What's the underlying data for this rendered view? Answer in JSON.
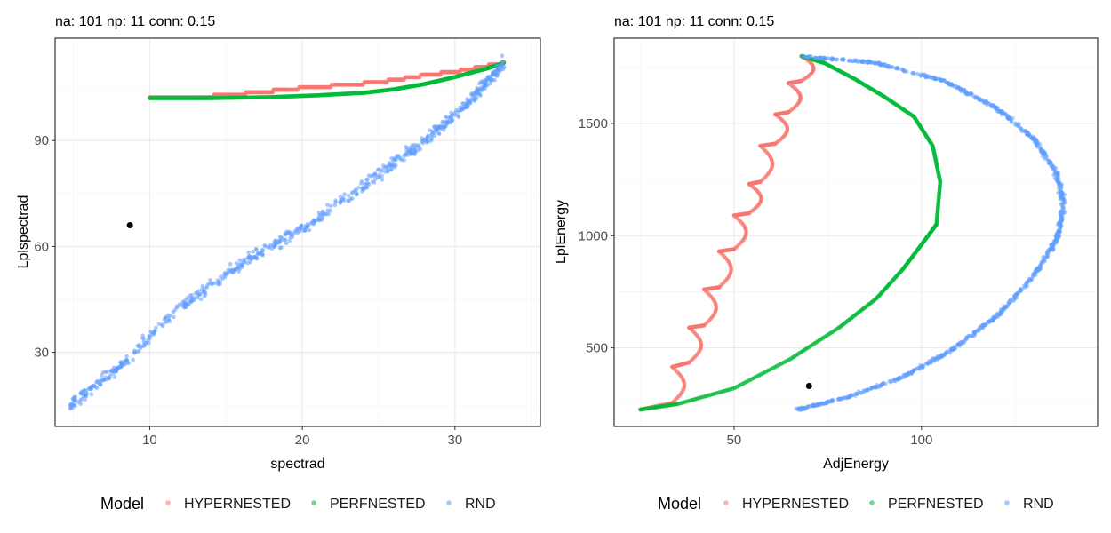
{
  "chart_data": [
    {
      "type": "scatter",
      "title": "na: 101 np: 11 conn: 0.15",
      "xlabel": "spectrad",
      "ylabel": "Lplspectrad",
      "xlim": [
        3.8,
        35.6
      ],
      "ylim": [
        9,
        119
      ],
      "xticks": [
        10,
        20,
        30
      ],
      "yticks": [
        30,
        60,
        90
      ],
      "grid": true,
      "legend": {
        "title": "Model",
        "position": "bottom"
      },
      "series": [
        {
          "name": "HYPERNESTED",
          "color": "#F8766D",
          "pattern": "step_curve",
          "points": [
            [
              10,
              102
            ],
            [
              13,
              102
            ],
            [
              15,
              103
            ],
            [
              17,
              103.5
            ],
            [
              19,
              104.5
            ],
            [
              22,
              105.5
            ],
            [
              25,
              106.5
            ],
            [
              28,
              108.5
            ],
            [
              30,
              109.5
            ],
            [
              32,
              111
            ],
            [
              33.2,
              112
            ]
          ]
        },
        {
          "name": "PERFNESTED",
          "color": "#00BA38",
          "pattern": "curve",
          "points": [
            [
              10,
              102
            ],
            [
              14,
              102
            ],
            [
              18,
              102.3
            ],
            [
              21,
              102.8
            ],
            [
              24,
              103.5
            ],
            [
              26,
              104.5
            ],
            [
              28,
              106
            ],
            [
              30,
              108
            ],
            [
              32,
              110.3
            ],
            [
              33.2,
              112
            ]
          ]
        },
        {
          "name": "RND",
          "color": "#619CFF",
          "pattern": "noisy_band",
          "points": [
            [
              4.8,
              15
            ],
            [
              8,
              26
            ],
            [
              12,
              43
            ],
            [
              16,
              55
            ],
            [
              20,
              65
            ],
            [
              24,
              77
            ],
            [
              28,
              90
            ],
            [
              31,
              101
            ],
            [
              33.2,
              112
            ]
          ]
        },
        {
          "name": "",
          "color": "#000000",
          "pattern": "single",
          "points": [
            [
              8.7,
              66
            ]
          ]
        }
      ]
    },
    {
      "type": "scatter",
      "title": "na: 101 np: 11 conn: 0.15",
      "xlabel": "AdjEnergy",
      "ylabel": "LplEnergy",
      "xlim": [
        18,
        147
      ],
      "ylim": [
        150,
        1880
      ],
      "xticks": [
        50,
        100
      ],
      "yticks": [
        500,
        1000,
        1500
      ],
      "grid": true,
      "legend": {
        "title": "Model",
        "position": "bottom"
      },
      "series": [
        {
          "name": "HYPERNESTED",
          "color": "#F8766D",
          "pattern": "scalloped",
          "points": [
            [
              25,
              225
            ],
            [
              33.5,
              255
            ],
            [
              33.5,
              415
            ],
            [
              38,
              435
            ],
            [
              38,
              590
            ],
            [
              42,
              600
            ],
            [
              42,
              760
            ],
            [
              46,
              770
            ],
            [
              46,
              930
            ],
            [
              50,
              940
            ],
            [
              50,
              1090
            ],
            [
              54,
              1100
            ],
            [
              54,
              1230
            ],
            [
              57,
              1240
            ],
            [
              57,
              1400
            ],
            [
              61,
              1410
            ],
            [
              61,
              1540
            ],
            [
              64.5,
              1550
            ],
            [
              64.5,
              1680
            ],
            [
              68,
              1690
            ],
            [
              68,
              1800
            ]
          ]
        },
        {
          "name": "PERFNESTED",
          "color": "#00BA38",
          "pattern": "curve",
          "points": [
            [
              25,
              225
            ],
            [
              35,
              250
            ],
            [
              50,
              320
            ],
            [
              65,
              450
            ],
            [
              78,
              590
            ],
            [
              88,
              720
            ],
            [
              95,
              850
            ],
            [
              100,
              960
            ],
            [
              104,
              1050
            ],
            [
              105,
              1240
            ],
            [
              103,
              1400
            ],
            [
              98,
              1530
            ],
            [
              90,
              1620
            ],
            [
              82,
              1700
            ],
            [
              74,
              1770
            ],
            [
              68,
              1800
            ]
          ]
        },
        {
          "name": "RND",
          "color": "#619CFF",
          "pattern": "noisy_curve",
          "points": [
            [
              67,
              225
            ],
            [
              80,
              280
            ],
            [
              95,
              370
            ],
            [
              108,
              490
            ],
            [
              120,
              640
            ],
            [
              130,
              820
            ],
            [
              136,
              980
            ],
            [
              138,
              1130
            ],
            [
              136,
              1280
            ],
            [
              130,
              1430
            ],
            [
              120,
              1570
            ],
            [
              106,
              1690
            ],
            [
              88,
              1770
            ],
            [
              68,
              1800
            ]
          ]
        },
        {
          "name": "",
          "color": "#000000",
          "pattern": "single",
          "points": [
            [
              70,
              330
            ]
          ]
        }
      ]
    }
  ]
}
